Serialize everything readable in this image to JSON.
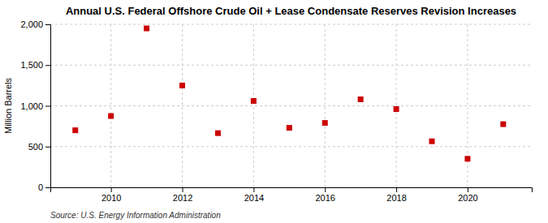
{
  "chart_data": {
    "type": "scatter",
    "title": "Annual U.S. Federal Offshore Crude Oil + Lease Condensate Reserves Revision Increases",
    "ylabel": "Million Barrels",
    "source": "Source: U.S. Energy Information Administration",
    "x": [
      2009,
      2010,
      2011,
      2012,
      2013,
      2014,
      2015,
      2016,
      2017,
      2018,
      2019,
      2020,
      2021
    ],
    "values": [
      700,
      875,
      1950,
      1250,
      665,
      1060,
      730,
      790,
      1080,
      960,
      565,
      350,
      775
    ],
    "color": "#cc0000",
    "marker": "square",
    "xlim": [
      2008.3,
      2021.8
    ],
    "xticks": [
      2010,
      2012,
      2014,
      2016,
      2018,
      2020
    ],
    "ylim": [
      0,
      2000
    ],
    "yticks": [
      0,
      500,
      {
        "value": 1000,
        "label": "1,000"
      },
      {
        "value": 1500,
        "label": "1,500"
      },
      {
        "value": 2000,
        "label": "2,000"
      }
    ],
    "grid": true
  }
}
